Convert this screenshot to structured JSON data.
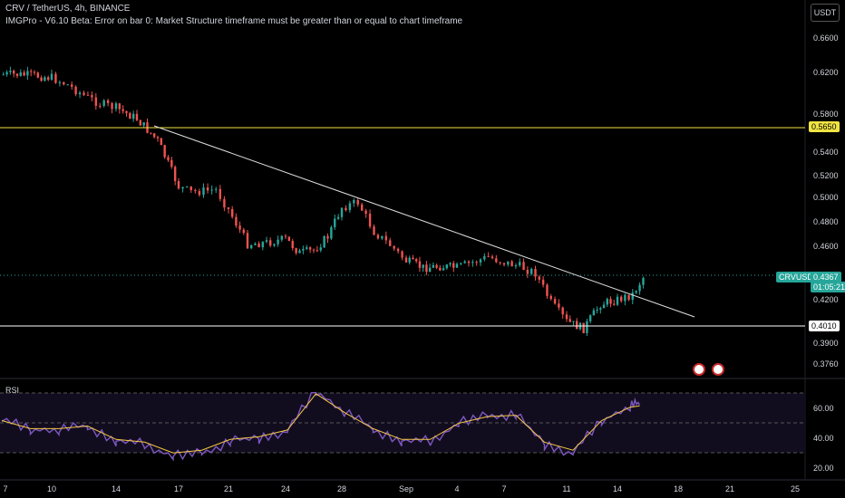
{
  "header": {
    "symbol_line": "CRV / TetherUS, 4h, BINANCE",
    "indicator_line": "IMGPro - V6.10 Beta: Error on bar 0: Market Structure timeframe must be greater than or equal to chart timeframe",
    "currency_button": "USDT"
  },
  "rsi_panel": {
    "label": "RSI"
  },
  "tags": {
    "level_upper": "0.5650",
    "level_lower": "0.4010",
    "symbol": "CRVUSDT",
    "last_price": "0.4367",
    "countdown": "01:05:21"
  },
  "colors": {
    "background": "#000000",
    "up": "#26a69a",
    "down": "#ef5350",
    "level_line": "#f0e442",
    "trendline": "#e0e0e0",
    "rsi_line": "#7e57c2",
    "rsi_ma": "#f5c842"
  },
  "chart_data": [
    {
      "type": "candlestick",
      "title": "CRV / TetherUS, 4h, BINANCE",
      "x_axis": "date",
      "x_ticks": [
        "7",
        "10",
        "14",
        "17",
        "21",
        "24",
        "28",
        "Sep",
        "4",
        "7",
        "11",
        "14",
        "18",
        "21",
        "25"
      ],
      "y_ticks": [
        "0.6600",
        "0.6200",
        "0.5800",
        "0.5400",
        "0.5200",
        "0.5000",
        "0.4800",
        "0.4600",
        "0.4200",
        "0.3900",
        "0.3760"
      ],
      "horizontal_levels": [
        0.565,
        0.401
      ],
      "trendline": {
        "from": {
          "x": "15 Aug",
          "y": 0.566
        },
        "to": {
          "x": "15 Sep",
          "y": 0.4187
        }
      },
      "close_path": [
        [
          "7 Aug",
          0.618
        ],
        [
          "8 Aug",
          0.618
        ],
        [
          "9 Aug",
          0.617
        ],
        [
          "10 Aug",
          0.615
        ],
        [
          "11 Aug",
          0.608
        ],
        [
          "12 Aug",
          0.598
        ],
        [
          "13 Aug",
          0.59
        ],
        [
          "14 Aug",
          0.586
        ],
        [
          "15 Aug",
          0.575
        ],
        [
          "16 Aug",
          0.552
        ],
        [
          "17 Aug",
          0.51
        ],
        [
          "18 Aug",
          0.505
        ],
        [
          "19 Aug",
          0.506
        ],
        [
          "20 Aug",
          0.507
        ],
        [
          "21 Aug",
          0.49
        ],
        [
          "22 Aug",
          0.462
        ],
        [
          "23 Aug",
          0.463
        ],
        [
          "24 Aug",
          0.466
        ],
        [
          "25 Aug",
          0.455
        ],
        [
          "26 Aug",
          0.457
        ],
        [
          "27 Aug",
          0.468
        ],
        [
          "28 Aug",
          0.492
        ],
        [
          "29 Aug",
          0.496
        ],
        [
          "30 Aug",
          0.472
        ],
        [
          "31 Aug",
          0.461
        ],
        [
          "1 Sep",
          0.449
        ],
        [
          "2 Sep",
          0.444
        ],
        [
          "3 Sep",
          0.445
        ],
        [
          "4 Sep",
          0.444
        ],
        [
          "5 Sep",
          0.448
        ],
        [
          "6 Sep",
          0.452
        ],
        [
          "7 Sep",
          0.448
        ],
        [
          "8 Sep",
          0.445
        ],
        [
          "9 Sep",
          0.44
        ],
        [
          "10 Sep",
          0.418
        ],
        [
          "11 Sep",
          0.405
        ],
        [
          "12 Sep",
          0.4
        ],
        [
          "13 Sep",
          0.417
        ],
        [
          "14 Sep",
          0.42
        ],
        [
          "15 Sep",
          0.424
        ],
        [
          "15.7 Sep",
          0.4367
        ]
      ],
      "last_price": 0.4367
    },
    {
      "type": "line",
      "title": "RSI",
      "y_ticks": [
        "60.00",
        "40.00",
        "20.00"
      ],
      "bands": [
        70,
        50,
        30
      ],
      "series": [
        {
          "values": [
            [
              0,
              52
            ],
            [
              3,
              46
            ],
            [
              6,
              46
            ],
            [
              9,
              48
            ],
            [
              12,
              38
            ],
            [
              15,
              36
            ],
            [
              18,
              28
            ],
            [
              21,
              30
            ],
            [
              24,
              38
            ],
            [
              27,
              40
            ],
            [
              30,
              45
            ],
            [
              33,
              72
            ],
            [
              36,
              58
            ],
            [
              39,
              46
            ],
            [
              42,
              38
            ],
            [
              45,
              38
            ],
            [
              48,
              50
            ],
            [
              51,
              55
            ],
            [
              54,
              56
            ],
            [
              57,
              36
            ],
            [
              60,
              30
            ],
            [
              63,
              52
            ],
            [
              66,
              62
            ],
            [
              67,
              63
            ]
          ]
        }
      ]
    }
  ]
}
